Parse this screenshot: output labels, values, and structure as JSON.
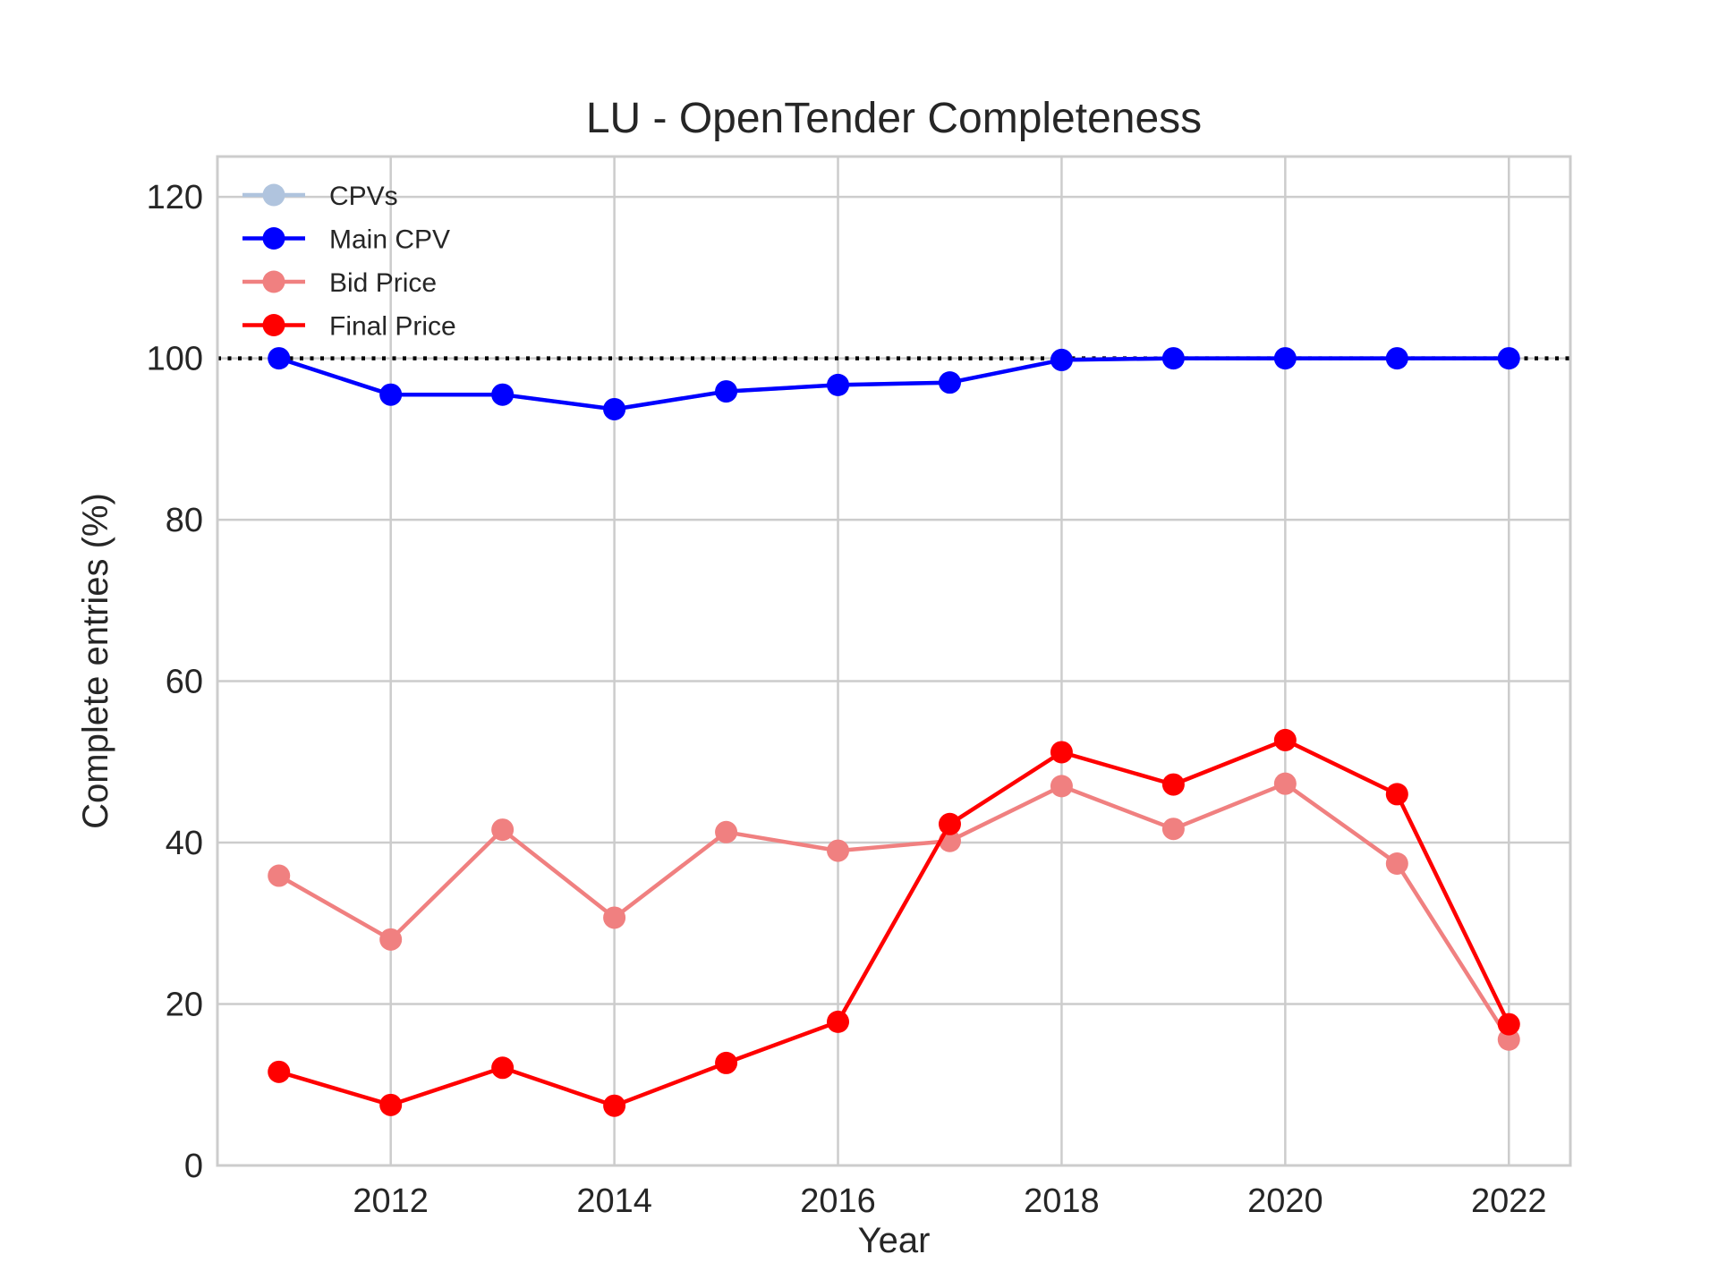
{
  "chart_data": {
    "type": "line",
    "title": "LU - OpenTender Completeness",
    "xlabel": "Year",
    "ylabel": "Complete entries (%)",
    "x": [
      2011,
      2012,
      2013,
      2014,
      2015,
      2016,
      2017,
      2018,
      2019,
      2020,
      2021,
      2022
    ],
    "xticks": [
      2012,
      2014,
      2016,
      2018,
      2020,
      2022
    ],
    "yticks": [
      0,
      20,
      40,
      60,
      80,
      100,
      120
    ],
    "xlim": [
      2010.45,
      2022.55
    ],
    "ylim": [
      0,
      125
    ],
    "grid": true,
    "legend_position": "top-left",
    "reference_line": {
      "y": 100,
      "style": "dotted",
      "color": "#000000"
    },
    "series": [
      {
        "name": "CPVs",
        "color": "#b0c4de",
        "values": [
          100,
          95.5,
          95.5,
          93.7,
          95.9,
          96.7,
          97.0,
          99.8,
          100,
          100,
          100,
          100
        ]
      },
      {
        "name": "Main CPV",
        "color": "#0000ff",
        "values": [
          100,
          95.5,
          95.5,
          93.7,
          95.9,
          96.7,
          97.0,
          99.8,
          100,
          100,
          100,
          100
        ]
      },
      {
        "name": "Bid Price",
        "color": "#f08080",
        "values": [
          35.9,
          28.0,
          41.6,
          30.7,
          41.3,
          39.0,
          40.2,
          47.0,
          41.7,
          47.3,
          37.4,
          15.6
        ]
      },
      {
        "name": "Final Price",
        "color": "#ff0000",
        "values": [
          11.6,
          7.5,
          12.1,
          7.4,
          12.7,
          17.8,
          42.3,
          51.2,
          47.2,
          52.7,
          46.0,
          17.5
        ]
      }
    ]
  }
}
